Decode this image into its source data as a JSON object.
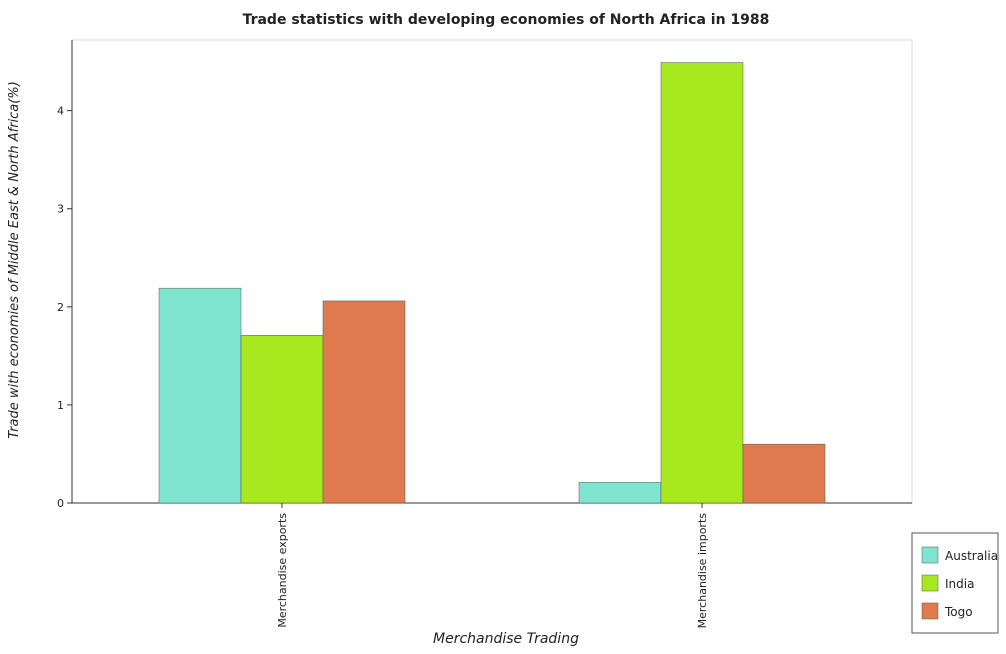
{
  "chart_data": {
    "type": "bar",
    "title": "Trade statistics with developing economies of North Africa in 1988",
    "xlabel": "Merchandise Trading",
    "ylabel": "Trade with economies of Middle East & North Africa(%)",
    "categories": [
      "Merchandise exports",
      "Merchandise imports"
    ],
    "series": [
      {
        "name": "Australia",
        "color": "#7fe5d0",
        "values": [
          2.19,
          0.21
        ]
      },
      {
        "name": "India",
        "color": "#a8e81f",
        "values": [
          1.71,
          4.49
        ]
      },
      {
        "name": "Togo",
        "color": "#e07a4f",
        "values": [
          2.06,
          0.6
        ]
      }
    ],
    "ylim": [
      0,
      4.72
    ],
    "yticks": [
      0,
      1,
      2,
      3,
      4
    ],
    "grid": false,
    "legend_position": "bottom-right"
  },
  "colors": {
    "bar_stroke": "#555555",
    "axis": "#333333"
  }
}
